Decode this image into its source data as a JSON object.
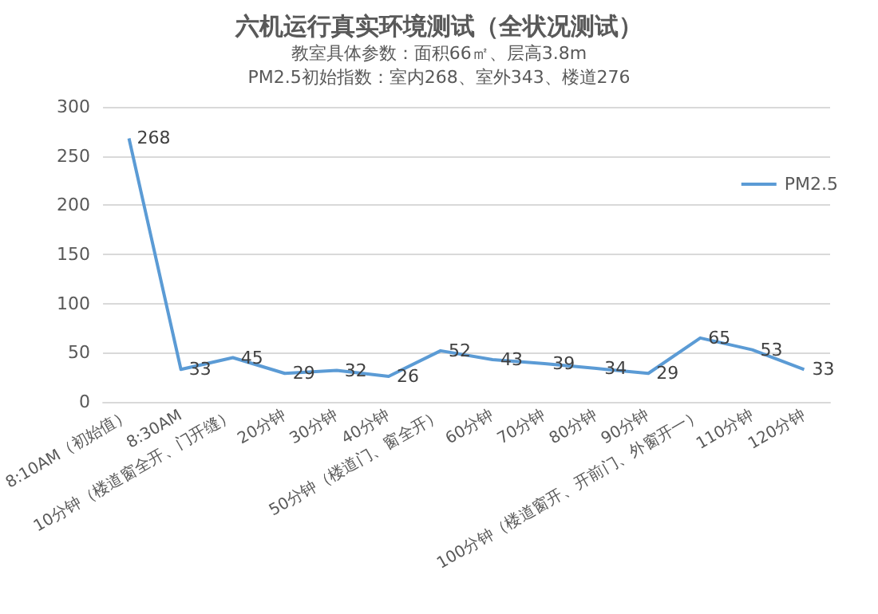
{
  "chart_data": {
    "type": "line",
    "title": "六机运行真实环境测试（全状况测试）",
    "subtitle": "教室具体参数：面积66㎡、层高3.8m\nPM2.5初始指数：室内268、室外343、楼道276",
    "categories": [
      "8:10AM（初始值）",
      "8:30AM",
      "10分钟（楼道窗全开、门开缝）",
      "20分钟",
      "30分钟",
      "40分钟",
      "50分钟（楼道门、窗全开）",
      "60分钟",
      "70分钟",
      "80分钟",
      "90分钟",
      "100分钟（楼道窗开、开前门、外窗开一）",
      "110分钟",
      "120分钟"
    ],
    "series": [
      {
        "name": "PM2.5",
        "color": "#5b9bd5",
        "values": [
          268,
          33,
          45,
          29,
          32,
          26,
          52,
          43,
          39,
          34,
          29,
          65,
          53,
          33
        ]
      }
    ],
    "ylim": [
      0,
      300
    ],
    "yticks": [
      0,
      50,
      100,
      150,
      200,
      250,
      300
    ],
    "grid": "y",
    "legend": "right",
    "data_labels": true,
    "marker": "none",
    "line_style": "solid"
  }
}
